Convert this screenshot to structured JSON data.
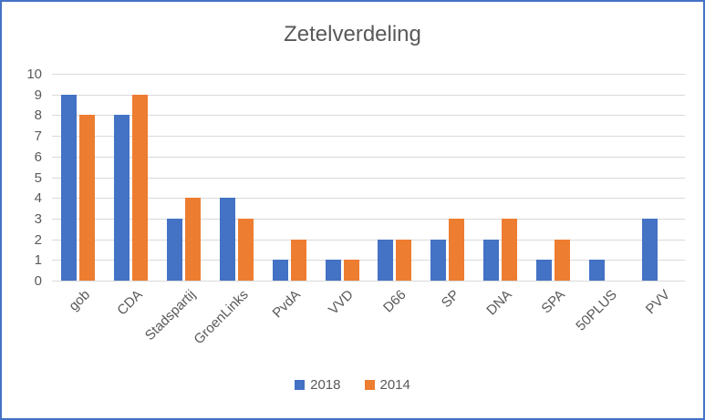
{
  "chart_data": {
    "type": "bar",
    "title": "Zetelverdeling",
    "categories": [
      "gob",
      "CDA",
      "Stadspartij",
      "GroenLinks",
      "PvdA",
      "VVD",
      "D66",
      "SP",
      "DNA",
      "SPA",
      "50PLUS",
      "PVV"
    ],
    "series": [
      {
        "name": "2018",
        "color": "#4472C4",
        "values": [
          9,
          8,
          3,
          4,
          1,
          1,
          2,
          2,
          2,
          1,
          1,
          3
        ]
      },
      {
        "name": "2014",
        "color": "#ED7D31",
        "values": [
          8,
          9,
          4,
          3,
          2,
          1,
          2,
          3,
          3,
          2,
          0,
          0
        ]
      }
    ],
    "xlabel": "",
    "ylabel": "",
    "ylim": [
      0,
      10
    ],
    "ytick_interval": 1,
    "yticks": [
      "0",
      "1",
      "2",
      "3",
      "4",
      "5",
      "6",
      "7",
      "8",
      "9",
      "10"
    ],
    "grid": true,
    "legend_position": "bottom"
  },
  "colors": {
    "frame_border": "#4472C4",
    "gridline": "#D9D9D9",
    "text": "#595959",
    "series_2018": "#4472C4",
    "series_2014": "#ED7D31"
  }
}
